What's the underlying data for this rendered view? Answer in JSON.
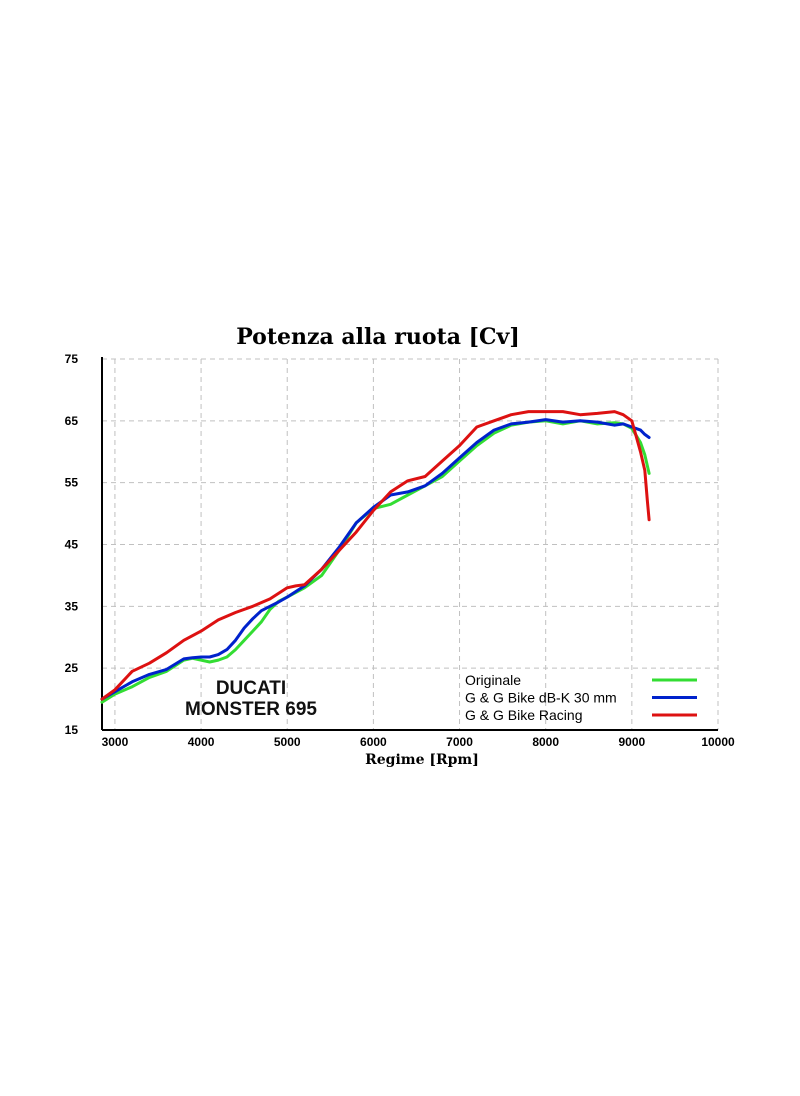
{
  "chart_data": {
    "type": "line",
    "title": "Potenza alla ruota [Cv]",
    "xlabel": "Regime [Rpm]",
    "ylabel": "",
    "xlim": [
      2850,
      10000
    ],
    "ylim": [
      15,
      75
    ],
    "xticks": [
      3000,
      4000,
      5000,
      6000,
      7000,
      8000,
      9000,
      10000
    ],
    "yticks": [
      15,
      25,
      35,
      45,
      55,
      65,
      75
    ],
    "grid": true,
    "legend_position": "bottom-right",
    "annotation": [
      "DUCATI",
      "MONSTER 695"
    ],
    "series": [
      {
        "name": "Originale",
        "color": "#33dd33",
        "x": [
          2850,
          3000,
          3200,
          3400,
          3600,
          3800,
          3900,
          4000,
          4100,
          4200,
          4300,
          4400,
          4500,
          4600,
          4700,
          4800,
          4900,
          5000,
          5200,
          5400,
          5600,
          5800,
          6000,
          6200,
          6400,
          6600,
          6800,
          7000,
          7200,
          7400,
          7600,
          7800,
          8000,
          8200,
          8400,
          8600,
          8800,
          8900,
          9000,
          9100,
          9150,
          9200
        ],
        "y": [
          19.5,
          20.8,
          22.0,
          23.5,
          24.5,
          26.3,
          26.6,
          26.3,
          26.0,
          26.3,
          26.8,
          28.0,
          29.5,
          31.0,
          32.5,
          34.5,
          35.8,
          36.5,
          38.0,
          40.0,
          44.0,
          48.5,
          50.8,
          51.5,
          53.0,
          54.5,
          56.0,
          58.5,
          61.0,
          63.0,
          64.3,
          64.8,
          65.0,
          64.5,
          65.0,
          64.5,
          64.7,
          64.5,
          63.8,
          61.5,
          59.5,
          56.5
        ]
      },
      {
        "name": "G & G Bike dB-K 30 mm",
        "color": "#0022cc",
        "x": [
          2850,
          3000,
          3200,
          3400,
          3600,
          3800,
          3900,
          4000,
          4100,
          4200,
          4300,
          4400,
          4500,
          4600,
          4700,
          4800,
          4900,
          5000,
          5200,
          5400,
          5600,
          5800,
          6000,
          6200,
          6400,
          6600,
          6800,
          7000,
          7200,
          7400,
          7600,
          7800,
          8000,
          8200,
          8400,
          8600,
          8800,
          8900,
          9000,
          9100,
          9150,
          9200
        ],
        "y": [
          20.0,
          21.2,
          22.8,
          24.0,
          24.8,
          26.5,
          26.7,
          26.8,
          26.8,
          27.2,
          28.0,
          29.5,
          31.5,
          33.0,
          34.3,
          35.0,
          35.7,
          36.5,
          38.3,
          41.0,
          44.5,
          48.5,
          51.0,
          53.0,
          53.5,
          54.5,
          56.5,
          59.0,
          61.5,
          63.5,
          64.5,
          64.8,
          65.2,
          64.8,
          65.0,
          64.8,
          64.3,
          64.5,
          64.0,
          63.5,
          62.8,
          62.3
        ]
      },
      {
        "name": "G & G Bike Racing",
        "color": "#dd1111",
        "x": [
          2850,
          3000,
          3200,
          3400,
          3600,
          3800,
          4000,
          4200,
          4400,
          4600,
          4800,
          5000,
          5100,
          5200,
          5400,
          5600,
          5800,
          6000,
          6200,
          6400,
          6600,
          6800,
          7000,
          7200,
          7400,
          7600,
          7800,
          8000,
          8200,
          8400,
          8600,
          8800,
          8900,
          9000,
          9050,
          9100,
          9150,
          9180,
          9200
        ],
        "y": [
          20.0,
          21.5,
          24.5,
          25.8,
          27.5,
          29.5,
          31.0,
          32.8,
          34.0,
          35.0,
          36.2,
          38.0,
          38.3,
          38.5,
          41.0,
          44.0,
          47.0,
          50.5,
          53.5,
          55.3,
          56.0,
          58.5,
          61.0,
          64.0,
          65.0,
          66.0,
          66.5,
          66.5,
          66.5,
          66.0,
          66.2,
          66.5,
          66.0,
          65.0,
          62.5,
          60.0,
          57.0,
          52.0,
          49.0
        ]
      }
    ]
  }
}
